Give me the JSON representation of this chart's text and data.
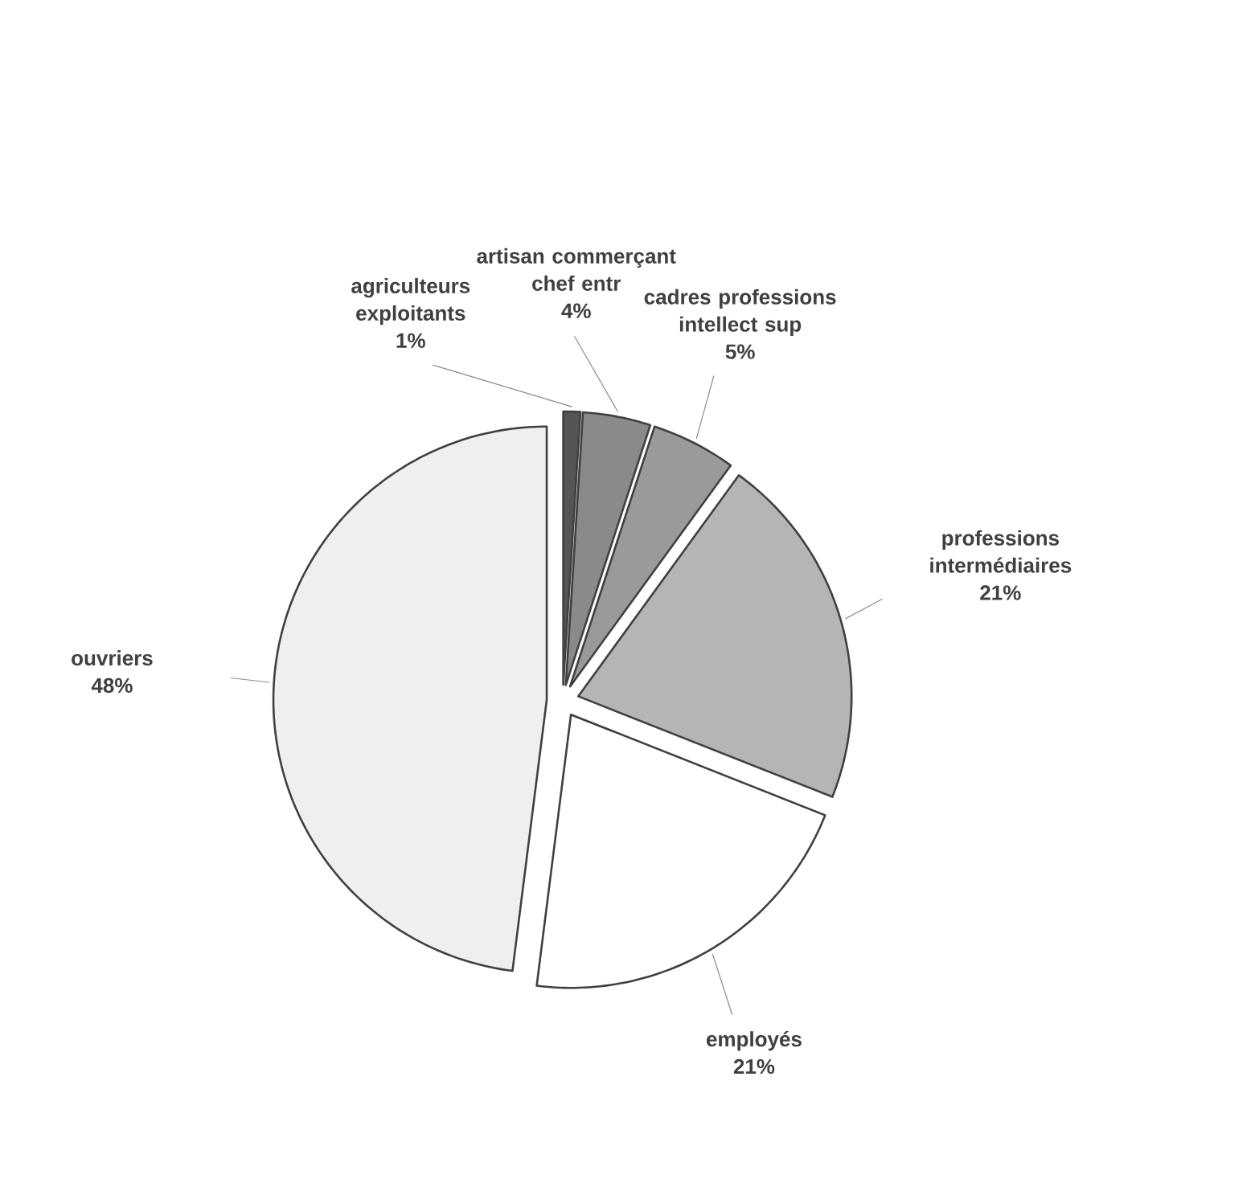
{
  "chart_data": {
    "type": "pie",
    "categories": [
      "agriculteurs exploitants",
      "artisan commerçant chef entr",
      "cadres professions intellect sup",
      "professions intermédiaires",
      "employés",
      "ouvriers"
    ],
    "values": [
      1,
      4,
      5,
      21,
      21,
      48
    ],
    "value_labels": [
      "1%",
      "4%",
      "5%",
      "21%",
      "21%",
      "48%"
    ],
    "colors": [
      "#555555",
      "#8a8a8a",
      "#9a9a9a",
      "#b5b5b5",
      "#ffffff",
      "#efefef"
    ],
    "legend": false
  }
}
